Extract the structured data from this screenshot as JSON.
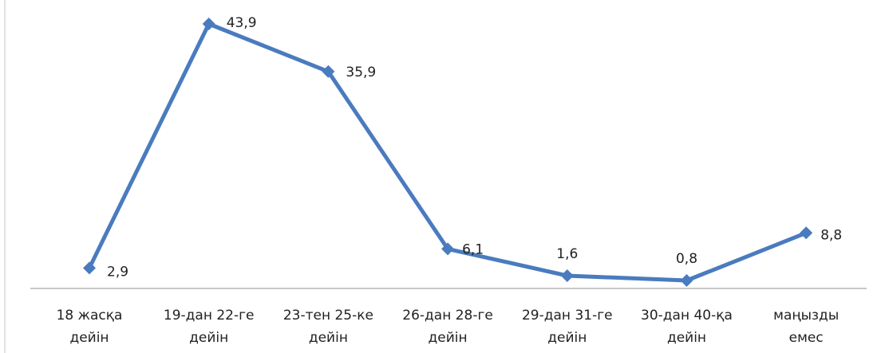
{
  "chart_data": {
    "type": "line",
    "title": "",
    "xlabel": "",
    "ylabel": "",
    "grid": false,
    "legend": "none",
    "categories": [
      [
        "18 жасқа",
        "дейін"
      ],
      [
        "19-дан  22-ге",
        "дейін"
      ],
      [
        "23-тен  25-ке",
        "дейін"
      ],
      [
        "26-дан  28-ге",
        "дейін"
      ],
      [
        "29-дан  31-ге",
        "дейін"
      ],
      [
        "30-дан 40-қа",
        "дейін"
      ],
      [
        "маңызды",
        "емес"
      ]
    ],
    "series": [
      {
        "values": [
          2.9,
          43.9,
          35.9,
          6.1,
          1.6,
          0.8,
          8.8
        ],
        "labels": [
          "2,9",
          "43,9",
          "35,9",
          "6,1",
          "1,6",
          "0,8",
          "8,8"
        ],
        "color": "#4a7bbf"
      }
    ]
  }
}
